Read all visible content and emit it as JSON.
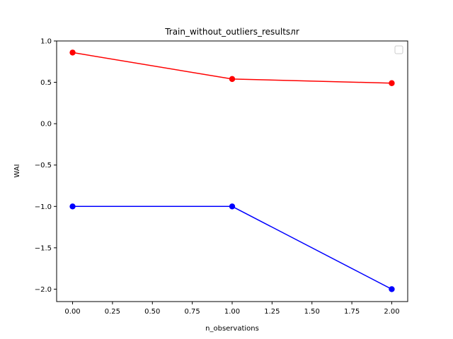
{
  "chart_data": {
    "type": "line",
    "title": "Train_without_outliers_resultsлr",
    "xlabel": "n_observations",
    "ylabel": "WAI",
    "xlim": [
      -0.1,
      2.1
    ],
    "ylim": [
      -2.15,
      1.0
    ],
    "x_ticks": [
      "0.00",
      "0.25",
      "0.50",
      "0.75",
      "1.00",
      "1.25",
      "1.50",
      "1.75",
      "2.00"
    ],
    "x_tick_values": [
      0,
      0.25,
      0.5,
      0.75,
      1.0,
      1.25,
      1.5,
      1.75,
      2.0
    ],
    "y_ticks": [
      "1.0",
      "0.5",
      "0.0",
      "−0.5",
      "−1.0",
      "−1.5",
      "−2.0"
    ],
    "y_tick_values": [
      1.0,
      0.5,
      0.0,
      -0.5,
      -1.0,
      -1.5,
      -2.0
    ],
    "grid": false,
    "legend": {
      "placement": "top-right",
      "entries": []
    },
    "series": [
      {
        "color": "#ff0000",
        "marker": "circle",
        "x": [
          0,
          1,
          2
        ],
        "y": [
          0.86,
          0.54,
          0.49
        ]
      },
      {
        "color": "#0000ff",
        "marker": "circle",
        "x": [
          0,
          1,
          2
        ],
        "y": [
          -1.0,
          -1.0,
          -2.0
        ]
      }
    ]
  }
}
